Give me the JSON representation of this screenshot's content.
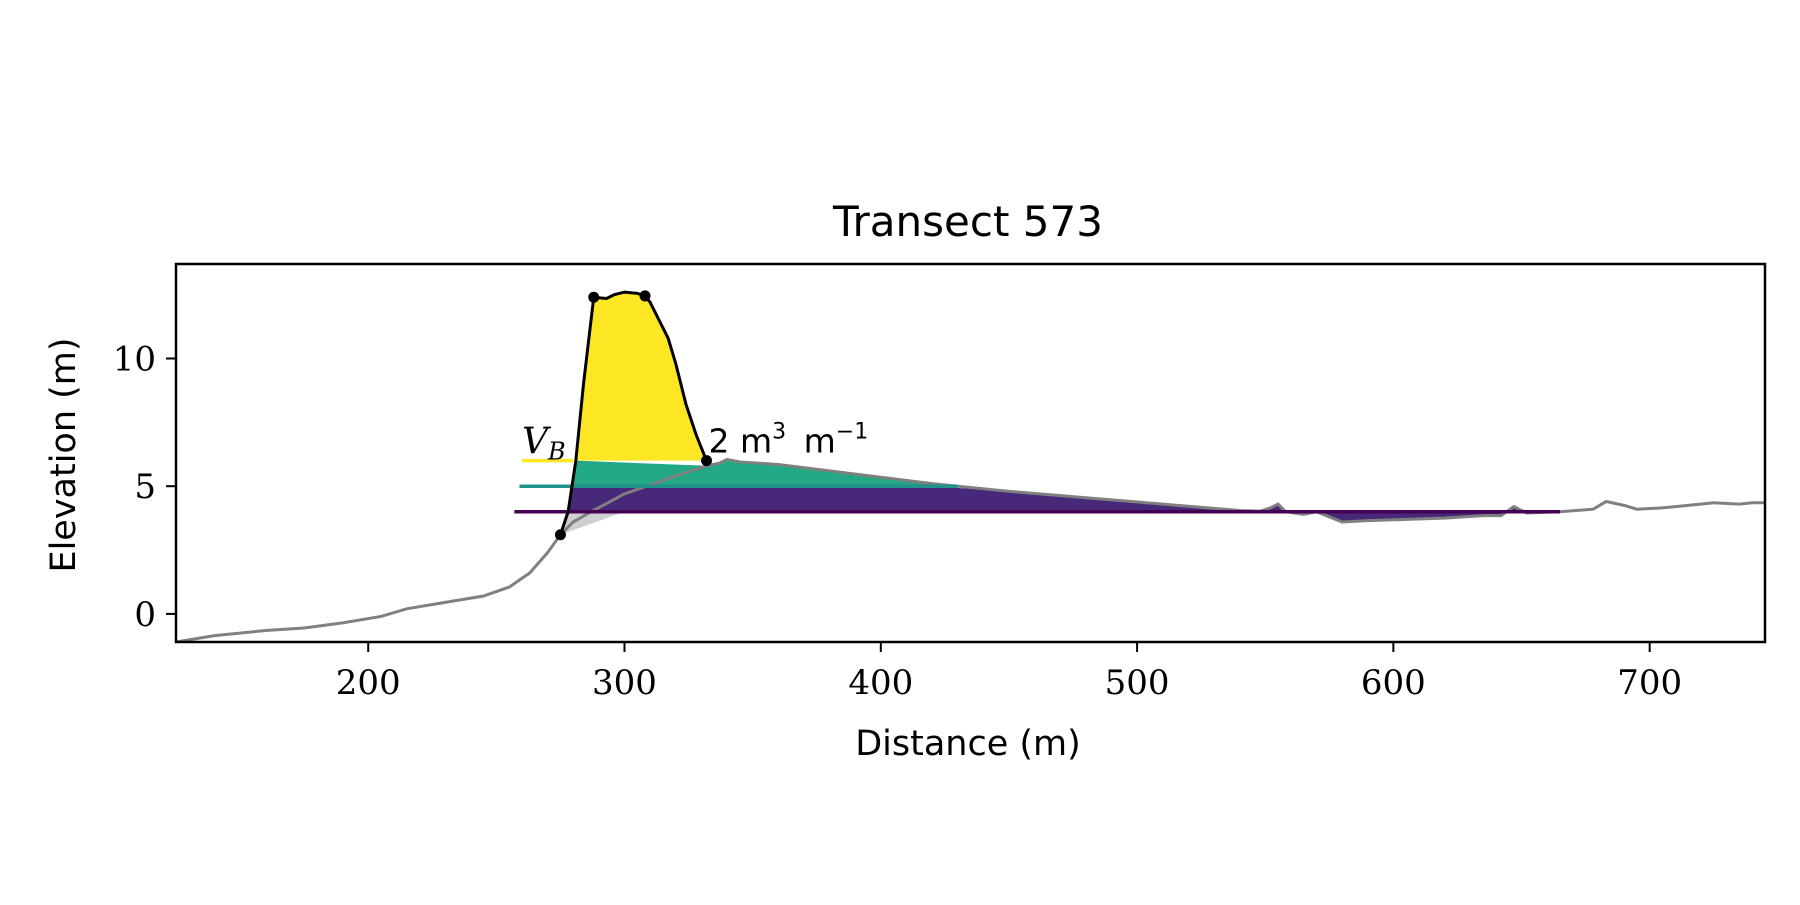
{
  "chart_data": {
    "type": "area",
    "title": "Transect 573",
    "xlabel": "Distance (m)",
    "ylabel": "Elevation (m)",
    "xlim": [
      125,
      745
    ],
    "ylim": [
      -1.1,
      13.7
    ],
    "xticks": [
      200,
      300,
      400,
      500,
      600,
      700
    ],
    "yticks": [
      0,
      5,
      10
    ],
    "grid": false,
    "legend": "none",
    "profile": {
      "color": "#808080",
      "points": [
        [
          125,
          -1.1
        ],
        [
          140,
          -0.85
        ],
        [
          160,
          -0.65
        ],
        [
          175,
          -0.55
        ],
        [
          190,
          -0.35
        ],
        [
          205,
          -0.1
        ],
        [
          215,
          0.2
        ],
        [
          230,
          0.45
        ],
        [
          245,
          0.7
        ],
        [
          255,
          1.05
        ],
        [
          263,
          1.6
        ],
        [
          270,
          2.4
        ],
        [
          275,
          3.1
        ],
        [
          280,
          3.6
        ],
        [
          287,
          4.0
        ],
        [
          300,
          4.7
        ],
        [
          320,
          5.4
        ],
        [
          332,
          5.8
        ],
        [
          337,
          5.9
        ],
        [
          340,
          6.05
        ],
        [
          345,
          5.95
        ],
        [
          360,
          5.85
        ],
        [
          380,
          5.6
        ],
        [
          400,
          5.35
        ],
        [
          420,
          5.1
        ],
        [
          450,
          4.8
        ],
        [
          480,
          4.55
        ],
        [
          510,
          4.3
        ],
        [
          540,
          4.05
        ],
        [
          548,
          4.02
        ],
        [
          552,
          4.15
        ],
        [
          555,
          4.3
        ],
        [
          558,
          4.0
        ],
        [
          565,
          3.9
        ],
        [
          570,
          4.0
        ],
        [
          575,
          3.8
        ],
        [
          580,
          3.6
        ],
        [
          590,
          3.65
        ],
        [
          605,
          3.7
        ],
        [
          620,
          3.75
        ],
        [
          635,
          3.85
        ],
        [
          642,
          3.85
        ],
        [
          647,
          4.2
        ],
        [
          652,
          3.95
        ],
        [
          665,
          4.0
        ],
        [
          678,
          4.1
        ],
        [
          683,
          4.4
        ],
        [
          690,
          4.25
        ],
        [
          695,
          4.1
        ],
        [
          705,
          4.15
        ],
        [
          715,
          4.25
        ],
        [
          725,
          4.35
        ],
        [
          735,
          4.3
        ],
        [
          740,
          4.35
        ],
        [
          745,
          4.35
        ]
      ]
    },
    "dune": {
      "outline_color": "#000000",
      "points": [
        [
          275,
          3.1
        ],
        [
          278,
          4.0
        ],
        [
          281,
          6.0
        ],
        [
          284,
          9.0
        ],
        [
          288,
          12.4
        ],
        [
          293,
          12.35
        ],
        [
          296,
          12.5
        ],
        [
          300,
          12.6
        ],
        [
          305,
          12.55
        ],
        [
          308,
          12.45
        ],
        [
          310,
          12.2
        ],
        [
          313,
          11.6
        ],
        [
          317,
          10.8
        ],
        [
          320,
          9.8
        ],
        [
          324,
          8.2
        ],
        [
          328,
          7.0
        ],
        [
          332,
          6.0
        ]
      ],
      "markers": [
        [
          275,
          3.1
        ],
        [
          288,
          12.4
        ],
        [
          308,
          12.45
        ],
        [
          332,
          6.0
        ]
      ]
    },
    "levels": [
      {
        "y": 6.0,
        "color": "#fde725",
        "line_start": 260
      },
      {
        "y": 5.0,
        "color": "#21918c",
        "fill": "#22a884",
        "line_start": 259
      },
      {
        "y": 4.0,
        "color": "#440154",
        "fill": "#482878",
        "line_start": 257
      }
    ],
    "annotations": {
      "vb_main": "V",
      "vb_sub": "B",
      "volume_number": "2 m",
      "volume_exp1": "3",
      "volume_unit": " m",
      "volume_exp2": "−1"
    }
  }
}
